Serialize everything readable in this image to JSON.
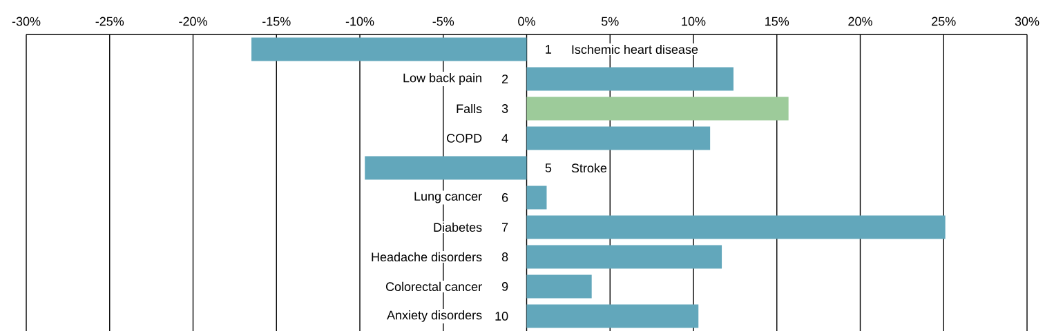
{
  "chart_data": {
    "type": "bar",
    "orientation": "horizontal",
    "grid": "x",
    "categories": [
      "Ischemic heart disease",
      "Low back pain",
      "Falls",
      "COPD",
      "Stroke",
      "Lung cancer",
      "Diabetes",
      "Headache disorders",
      "Colorectal cancer",
      "Anxiety disorders"
    ],
    "values": [
      -16.5,
      12.4,
      15.7,
      11.0,
      -9.7,
      1.2,
      25.1,
      11.7,
      3.9,
      10.3
    ],
    "colors": [
      "#62a7bb",
      "#62a7bb",
      "#9dcb9a",
      "#62a7bb",
      "#62a7bb",
      "#62a7bb",
      "#62a7bb",
      "#62a7bb",
      "#62a7bb",
      "#62a7bb"
    ],
    "xlim": [
      -30,
      30
    ],
    "xticks": [
      {
        "value": -30,
        "label": "-30%"
      },
      {
        "value": -25,
        "label": "-25%"
      },
      {
        "value": -20,
        "label": "-20%"
      },
      {
        "value": -15,
        "label": "-15%"
      },
      {
        "value": -10,
        "label": "-10%"
      },
      {
        "value": -5,
        "label": "-5%"
      },
      {
        "value": 0,
        "label": "0%"
      },
      {
        "value": 5,
        "label": "5%"
      },
      {
        "value": 10,
        "label": "10%"
      },
      {
        "value": 15,
        "label": "15%"
      },
      {
        "value": 20,
        "label": "20%"
      },
      {
        "value": 25,
        "label": "25%"
      },
      {
        "value": 30,
        "label": "30%"
      }
    ],
    "annotations": [
      {
        "text": "1",
        "y": "Ischemic heart disease"
      },
      {
        "text": "2",
        "y": "Low back pain"
      },
      {
        "text": "3",
        "y": "Falls"
      },
      {
        "text": "4",
        "y": "COPD"
      },
      {
        "text": "5",
        "y": "Stroke"
      },
      {
        "text": "6",
        "y": "Lung cancer"
      },
      {
        "text": "7",
        "y": "Diabetes"
      },
      {
        "text": "8",
        "y": "Headache disorders"
      },
      {
        "text": "9",
        "y": "Colorectal cancer"
      },
      {
        "text": "10",
        "y": "Anxiety disorders"
      }
    ]
  }
}
